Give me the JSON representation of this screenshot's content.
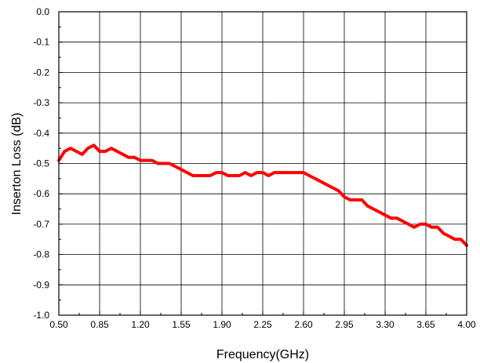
{
  "chart_data": {
    "type": "line",
    "xlabel": "Frequency(GHz)",
    "ylabel": "Inserton Loss (dB)",
    "xlim": [
      0.5,
      4.0
    ],
    "ylim": [
      -1.0,
      0.0
    ],
    "grid": true,
    "x_ticks": [
      0.5,
      0.85,
      1.2,
      1.55,
      1.9,
      2.25,
      2.6,
      2.95,
      3.3,
      3.65,
      4.0
    ],
    "x_tick_labels": [
      "0.50",
      "0.85",
      "1.20",
      "1.55",
      "1.90",
      "2.25",
      "2.60",
      "2.95",
      "3.30",
      "3.65",
      "4.00"
    ],
    "y_ticks": [
      0.0,
      -0.1,
      -0.2,
      -0.3,
      -0.4,
      -0.5,
      -0.6,
      -0.7,
      -0.8,
      -0.9,
      -1.0
    ],
    "y_tick_labels": [
      "0.0",
      "-0.1",
      "-0.2",
      "-0.3",
      "-0.4",
      "-0.5",
      "-0.6",
      "-0.7",
      "-0.8",
      "-0.9",
      "-1.0"
    ],
    "series": [
      {
        "color": "#ff0000",
        "x": [
          0.5,
          0.55,
          0.6,
          0.65,
          0.7,
          0.75,
          0.8,
          0.85,
          0.9,
          0.95,
          1.0,
          1.05,
          1.1,
          1.15,
          1.2,
          1.25,
          1.3,
          1.35,
          1.4,
          1.45,
          1.5,
          1.55,
          1.6,
          1.65,
          1.7,
          1.75,
          1.8,
          1.85,
          1.9,
          1.95,
          2.0,
          2.05,
          2.1,
          2.15,
          2.2,
          2.25,
          2.3,
          2.35,
          2.4,
          2.45,
          2.5,
          2.55,
          2.6,
          2.65,
          2.7,
          2.75,
          2.8,
          2.85,
          2.9,
          2.95,
          3.0,
          3.05,
          3.1,
          3.15,
          3.2,
          3.25,
          3.3,
          3.35,
          3.4,
          3.45,
          3.5,
          3.55,
          3.6,
          3.65,
          3.7,
          3.75,
          3.8,
          3.85,
          3.9,
          3.95,
          4.0
        ],
        "values": [
          -0.49,
          -0.46,
          -0.45,
          -0.46,
          -0.47,
          -0.45,
          -0.44,
          -0.46,
          -0.46,
          -0.45,
          -0.46,
          -0.47,
          -0.48,
          -0.48,
          -0.49,
          -0.49,
          -0.49,
          -0.5,
          -0.5,
          -0.5,
          -0.51,
          -0.52,
          -0.53,
          -0.54,
          -0.54,
          -0.54,
          -0.54,
          -0.53,
          -0.53,
          -0.54,
          -0.54,
          -0.54,
          -0.53,
          -0.54,
          -0.53,
          -0.53,
          -0.54,
          -0.53,
          -0.53,
          -0.53,
          -0.53,
          -0.53,
          -0.53,
          -0.54,
          -0.55,
          -0.56,
          -0.57,
          -0.58,
          -0.59,
          -0.61,
          -0.62,
          -0.62,
          -0.62,
          -0.64,
          -0.65,
          -0.66,
          -0.67,
          -0.68,
          -0.68,
          -0.69,
          -0.7,
          -0.71,
          -0.7,
          -0.7,
          -0.71,
          -0.71,
          -0.73,
          -0.74,
          -0.75,
          -0.75,
          -0.77
        ]
      }
    ]
  }
}
